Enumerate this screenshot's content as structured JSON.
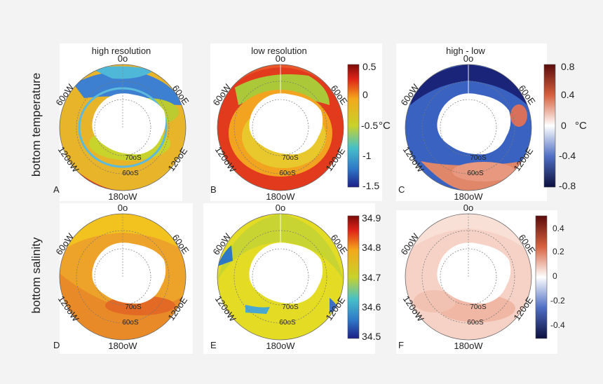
{
  "row_labels": [
    "bottom temperature",
    "bottom salinity"
  ],
  "column_titles": [
    "high resolution",
    "low resolution",
    "high - low"
  ],
  "meridian_labels": {
    "top": "0o",
    "bottom": "180oW",
    "upper_left": "60oW",
    "upper_right": "60oE",
    "lower_left": "120oW",
    "lower_right": "120oE"
  },
  "latitude_labels": [
    "70oS",
    "60oS"
  ],
  "panel_letters": [
    "A",
    "B",
    "C",
    "D",
    "E",
    "F"
  ],
  "colorbars": {
    "temperature": {
      "ticks": [
        "0.5",
        "0",
        "-0.5",
        "-1",
        "-1.5"
      ],
      "unit": "°C"
    },
    "temperature_diff": {
      "ticks": [
        "0.8",
        "0.4",
        "0",
        "-0.4",
        "-0.8"
      ],
      "unit": "°C"
    },
    "salinity": {
      "ticks": [
        "34.9",
        "34.8",
        "34.7",
        "34.6",
        "34.5"
      ]
    },
    "salinity_diff": {
      "ticks": [
        "0.4",
        "0.2",
        "0",
        "-0.2",
        "-0.4"
      ]
    }
  },
  "chart_data": [
    {
      "type": "heatmap",
      "panel": "A",
      "variable": "bottom temperature",
      "dataset": "high resolution",
      "vmin": -1.5,
      "vmax": 0.5,
      "colorbar_ticks": [
        0.5,
        0,
        -0.5,
        -1,
        -1.5
      ],
      "unit": "°C"
    },
    {
      "type": "heatmap",
      "panel": "B",
      "variable": "bottom temperature",
      "dataset": "low resolution",
      "vmin": -1.5,
      "vmax": 0.5,
      "colorbar_ticks": [
        0.5,
        0,
        -0.5,
        -1,
        -1.5
      ],
      "unit": "°C"
    },
    {
      "type": "heatmap",
      "panel": "C",
      "variable": "bottom temperature",
      "dataset": "high - low",
      "vmin": -0.8,
      "vmax": 0.8,
      "colorbar_ticks": [
        0.8,
        0.4,
        0,
        -0.4,
        -0.8
      ],
      "unit": "°C"
    },
    {
      "type": "heatmap",
      "panel": "D",
      "variable": "bottom salinity",
      "dataset": "high resolution",
      "vmin": 34.5,
      "vmax": 34.9,
      "colorbar_ticks": [
        34.9,
        34.8,
        34.7,
        34.6,
        34.5
      ]
    },
    {
      "type": "heatmap",
      "panel": "E",
      "variable": "bottom salinity",
      "dataset": "low resolution",
      "vmin": 34.5,
      "vmax": 34.9,
      "colorbar_ticks": [
        34.9,
        34.8,
        34.7,
        34.6,
        34.5
      ]
    },
    {
      "type": "heatmap",
      "panel": "F",
      "variable": "bottom salinity",
      "dataset": "high - low",
      "vmin": -0.5,
      "vmax": 0.5,
      "colorbar_ticks": [
        0.4,
        0.2,
        0,
        -0.2,
        -0.4
      ]
    }
  ]
}
